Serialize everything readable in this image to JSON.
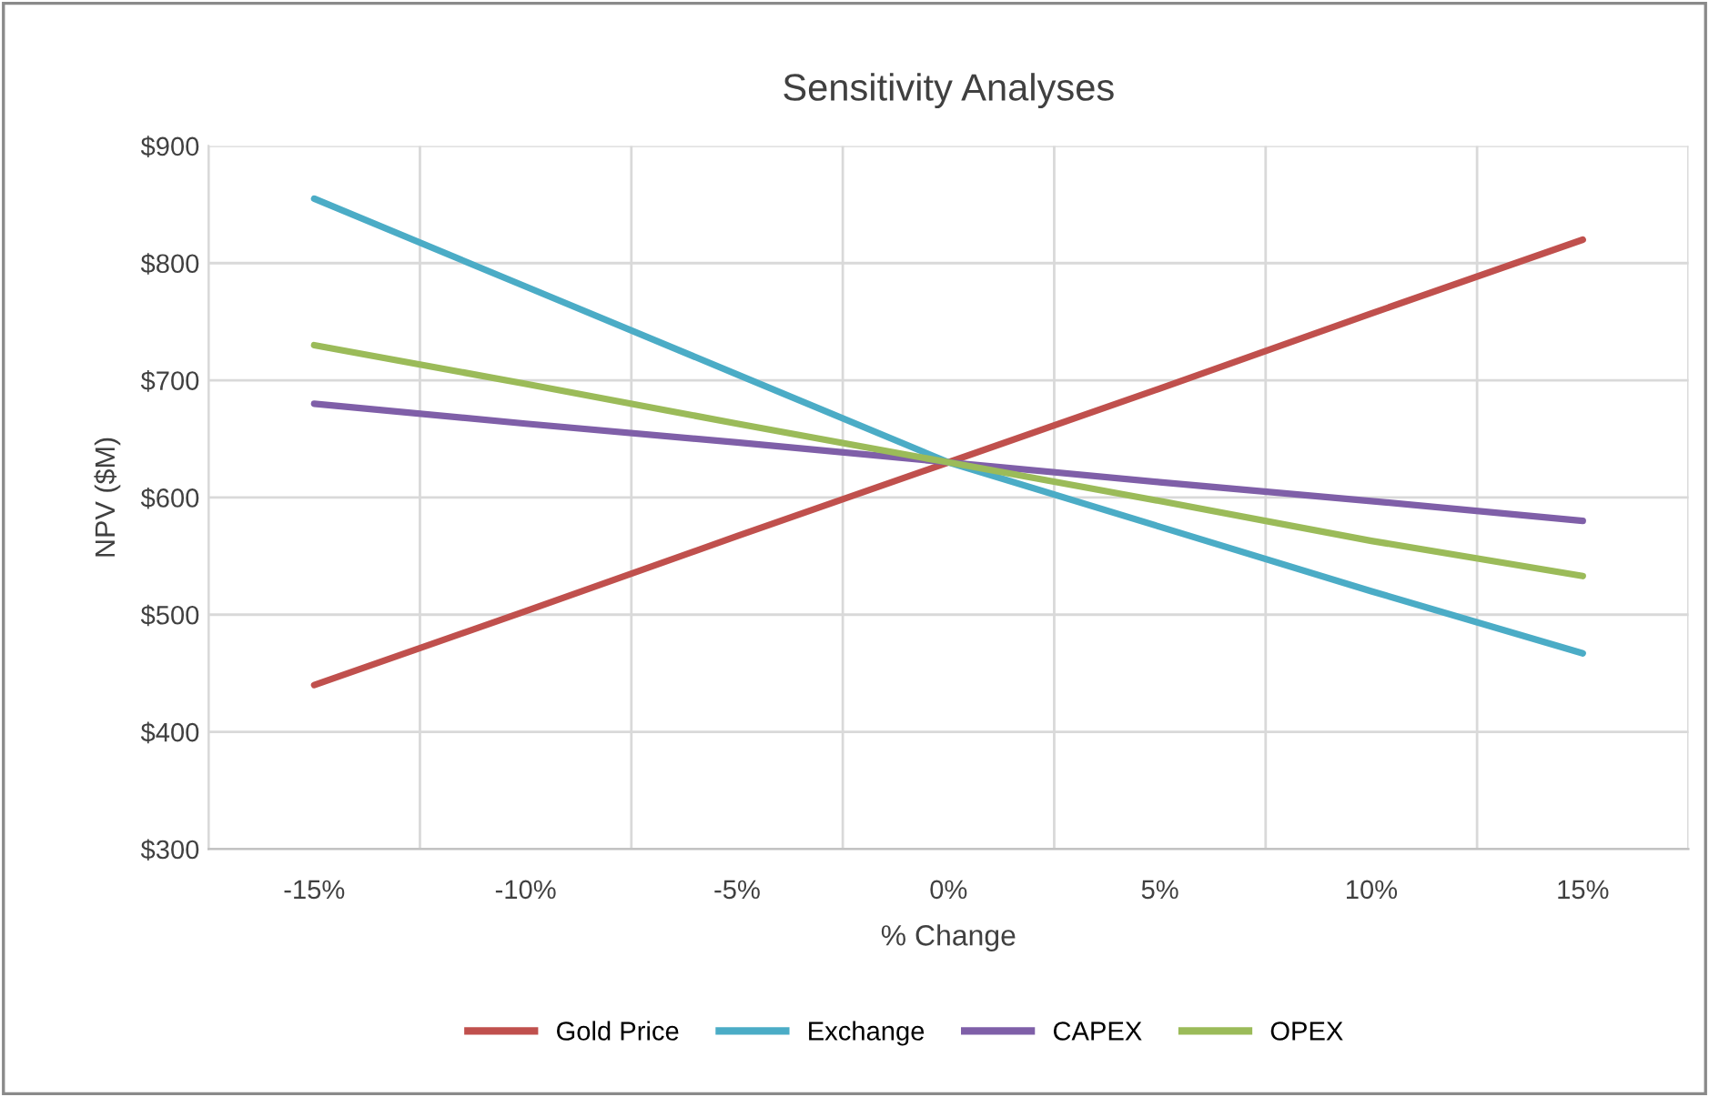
{
  "chart_data": {
    "type": "line",
    "title": "Sensitivity Analyses",
    "xlabel": "% Change",
    "ylabel": "NPV ($M)",
    "categories": [
      "-15%",
      "-10%",
      "-5%",
      "0%",
      "5%",
      "10%",
      "15%"
    ],
    "series": [
      {
        "name": "Gold Price",
        "color": "#c0504d",
        "values": [
          440,
          503,
          567,
          630,
          693,
          757,
          820
        ]
      },
      {
        "name": "Exchange",
        "color": "#4bacc6",
        "values": [
          855,
          780,
          705,
          630,
          575,
          520,
          467
        ]
      },
      {
        "name": "CAPEX",
        "color": "#7f5fa8",
        "values": [
          680,
          663,
          647,
          630,
          613,
          597,
          580
        ]
      },
      {
        "name": "OPEX",
        "color": "#9bbb59",
        "values": [
          730,
          697,
          663,
          630,
          597,
          563,
          533
        ]
      }
    ],
    "ylim": [
      300,
      900
    ],
    "yticks": [
      {
        "value": 300,
        "label": "$300"
      },
      {
        "value": 400,
        "label": "$400"
      },
      {
        "value": 500,
        "label": "$500"
      },
      {
        "value": 600,
        "label": "$600"
      },
      {
        "value": 700,
        "label": "$700"
      },
      {
        "value": 800,
        "label": "$800"
      },
      {
        "value": 900,
        "label": "$900"
      }
    ],
    "grid": true,
    "legend": "bottom",
    "marker": "none",
    "line_style": "solid"
  }
}
